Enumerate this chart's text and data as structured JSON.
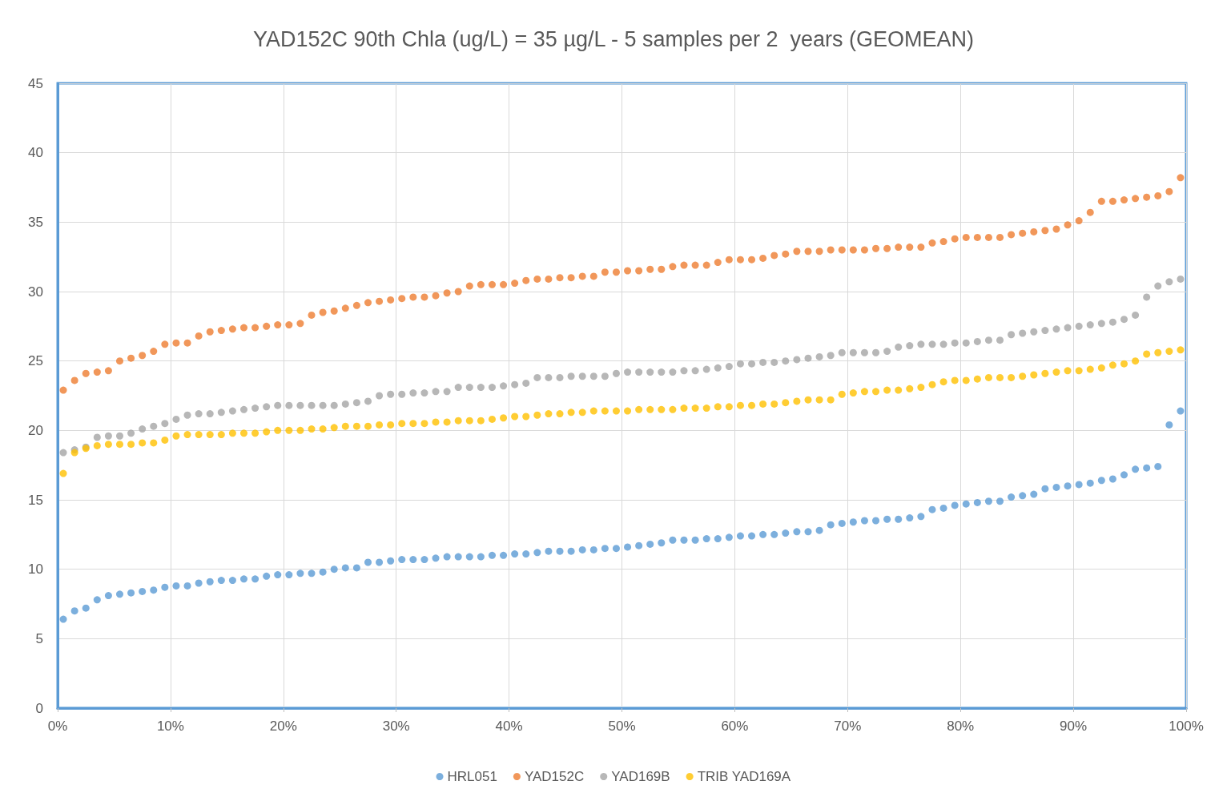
{
  "chart_data": {
    "type": "scatter",
    "title": "YAD152C 90th Chla (ug/L) = 35 µg/L - 5 samples per 2  years (GEOMEAN)",
    "x": [
      0.5,
      1.5,
      2.5,
      3.5,
      4.5,
      5.5,
      6.5,
      7.5,
      8.5,
      9.5,
      10.5,
      11.5,
      12.5,
      13.5,
      14.5,
      15.5,
      16.5,
      17.5,
      18.5,
      19.5,
      20.5,
      21.5,
      22.5,
      23.5,
      24.5,
      25.5,
      26.5,
      27.5,
      28.5,
      29.5,
      30.5,
      31.5,
      32.5,
      33.5,
      34.5,
      35.5,
      36.5,
      37.5,
      38.5,
      39.5,
      40.5,
      41.5,
      42.5,
      43.5,
      44.5,
      45.5,
      46.5,
      47.5,
      48.5,
      49.5,
      50.5,
      51.5,
      52.5,
      53.5,
      54.5,
      55.5,
      56.5,
      57.5,
      58.5,
      59.5,
      60.5,
      61.5,
      62.5,
      63.5,
      64.5,
      65.5,
      66.5,
      67.5,
      68.5,
      69.5,
      70.5,
      71.5,
      72.5,
      73.5,
      74.5,
      75.5,
      76.5,
      77.5,
      78.5,
      79.5,
      80.5,
      81.5,
      82.5,
      83.5,
      84.5,
      85.5,
      86.5,
      87.5,
      88.5,
      89.5,
      90.5,
      91.5,
      92.5,
      93.5,
      94.5,
      95.5,
      96.5,
      97.5,
      98.5,
      99.5
    ],
    "series": [
      {
        "name": "HRL051",
        "color": "#5b9bd5",
        "values": [
          6.4,
          7.0,
          7.2,
          7.8,
          8.1,
          8.2,
          8.3,
          8.4,
          8.5,
          8.7,
          8.8,
          8.8,
          9.0,
          9.1,
          9.2,
          9.2,
          9.3,
          9.3,
          9.5,
          9.6,
          9.6,
          9.7,
          9.7,
          9.8,
          10.0,
          10.1,
          10.1,
          10.5,
          10.5,
          10.6,
          10.7,
          10.7,
          10.7,
          10.8,
          10.9,
          10.9,
          10.9,
          10.9,
          11.0,
          11.0,
          11.1,
          11.1,
          11.2,
          11.3,
          11.3,
          11.3,
          11.4,
          11.4,
          11.5,
          11.5,
          11.6,
          11.7,
          11.8,
          11.9,
          12.1,
          12.1,
          12.1,
          12.2,
          12.2,
          12.3,
          12.4,
          12.4,
          12.5,
          12.5,
          12.6,
          12.7,
          12.7,
          12.8,
          13.2,
          13.3,
          13.4,
          13.5,
          13.5,
          13.6,
          13.6,
          13.7,
          13.8,
          14.3,
          14.4,
          14.6,
          14.7,
          14.8,
          14.9,
          14.9,
          15.2,
          15.3,
          15.4,
          15.8,
          15.9,
          16.0,
          16.1,
          16.2,
          16.4,
          16.5,
          16.8,
          17.2,
          17.3,
          17.4,
          20.4,
          21.4
        ]
      },
      {
        "name": "YAD152C",
        "color": "#ed7d31",
        "values": [
          22.9,
          23.6,
          24.1,
          24.2,
          24.3,
          25.0,
          25.2,
          25.4,
          25.7,
          26.2,
          26.3,
          26.3,
          26.8,
          27.1,
          27.2,
          27.3,
          27.4,
          27.4,
          27.5,
          27.6,
          27.6,
          27.7,
          28.3,
          28.5,
          28.6,
          28.8,
          29.0,
          29.2,
          29.3,
          29.4,
          29.5,
          29.6,
          29.6,
          29.7,
          29.9,
          30.0,
          30.4,
          30.5,
          30.5,
          30.5,
          30.6,
          30.8,
          30.9,
          30.9,
          31.0,
          31.0,
          31.1,
          31.1,
          31.4,
          31.4,
          31.5,
          31.5,
          31.6,
          31.6,
          31.8,
          31.9,
          31.9,
          31.9,
          32.1,
          32.3,
          32.3,
          32.3,
          32.4,
          32.6,
          32.7,
          32.9,
          32.9,
          32.9,
          33.0,
          33.0,
          33.0,
          33.0,
          33.1,
          33.1,
          33.2,
          33.2,
          33.2,
          33.5,
          33.6,
          33.8,
          33.9,
          33.9,
          33.9,
          33.9,
          34.1,
          34.2,
          34.3,
          34.4,
          34.5,
          34.8,
          35.1,
          35.7,
          36.5,
          36.5,
          36.6,
          36.7,
          36.8,
          36.9,
          37.2,
          38.2
        ]
      },
      {
        "name": "YAD169B",
        "color": "#a5a5a5",
        "values": [
          18.4,
          18.6,
          18.8,
          19.5,
          19.6,
          19.6,
          19.8,
          20.1,
          20.3,
          20.5,
          20.8,
          21.1,
          21.2,
          21.2,
          21.3,
          21.4,
          21.5,
          21.6,
          21.7,
          21.8,
          21.8,
          21.8,
          21.8,
          21.8,
          21.8,
          21.9,
          22.0,
          22.1,
          22.5,
          22.6,
          22.6,
          22.7,
          22.7,
          22.8,
          22.8,
          23.1,
          23.1,
          23.1,
          23.1,
          23.2,
          23.3,
          23.4,
          23.8,
          23.8,
          23.8,
          23.9,
          23.9,
          23.9,
          23.9,
          24.1,
          24.2,
          24.2,
          24.2,
          24.2,
          24.2,
          24.3,
          24.3,
          24.4,
          24.5,
          24.6,
          24.8,
          24.8,
          24.9,
          24.9,
          25.0,
          25.1,
          25.2,
          25.3,
          25.4,
          25.6,
          25.6,
          25.6,
          25.6,
          25.7,
          26.0,
          26.1,
          26.2,
          26.2,
          26.2,
          26.3,
          26.3,
          26.4,
          26.5,
          26.5,
          26.9,
          27.0,
          27.1,
          27.2,
          27.3,
          27.4,
          27.5,
          27.6,
          27.7,
          27.8,
          28.0,
          28.3,
          29.6,
          30.4,
          30.7,
          30.9
        ]
      },
      {
        "name": "TRIB YAD169A",
        "color": "#ffc000",
        "values": [
          16.9,
          18.4,
          18.7,
          18.9,
          19.0,
          19.0,
          19.0,
          19.1,
          19.1,
          19.3,
          19.6,
          19.7,
          19.7,
          19.7,
          19.7,
          19.8,
          19.8,
          19.8,
          19.9,
          20.0,
          20.0,
          20.0,
          20.1,
          20.1,
          20.2,
          20.3,
          20.3,
          20.3,
          20.4,
          20.4,
          20.5,
          20.5,
          20.5,
          20.6,
          20.6,
          20.7,
          20.7,
          20.7,
          20.8,
          20.9,
          21.0,
          21.0,
          21.1,
          21.2,
          21.2,
          21.3,
          21.3,
          21.4,
          21.4,
          21.4,
          21.4,
          21.5,
          21.5,
          21.5,
          21.5,
          21.6,
          21.6,
          21.6,
          21.7,
          21.7,
          21.8,
          21.8,
          21.9,
          21.9,
          22.0,
          22.1,
          22.2,
          22.2,
          22.2,
          22.6,
          22.7,
          22.8,
          22.8,
          22.9,
          22.9,
          23.0,
          23.1,
          23.3,
          23.5,
          23.6,
          23.6,
          23.7,
          23.8,
          23.8,
          23.8,
          23.9,
          24.0,
          24.1,
          24.2,
          24.3,
          24.3,
          24.4,
          24.5,
          24.7,
          24.8,
          25.0,
          25.5,
          25.6,
          25.7,
          25.8
        ]
      }
    ],
    "xlim": [
      0,
      100
    ],
    "xticks": [
      {
        "value": 0,
        "label": "0%"
      },
      {
        "value": 10,
        "label": "10%"
      },
      {
        "value": 20,
        "label": "20%"
      },
      {
        "value": 30,
        "label": "30%"
      },
      {
        "value": 40,
        "label": "40%"
      },
      {
        "value": 50,
        "label": "50%"
      },
      {
        "value": 60,
        "label": "60%"
      },
      {
        "value": 70,
        "label": "70%"
      },
      {
        "value": 80,
        "label": "80%"
      },
      {
        "value": 90,
        "label": "90%"
      },
      {
        "value": 100,
        "label": "100%"
      }
    ],
    "ylim": [
      0,
      45
    ],
    "yticks": [
      0,
      5,
      10,
      15,
      20,
      25,
      30,
      35,
      40,
      45
    ],
    "grid": true,
    "legend": "bottom",
    "marker": "circle"
  }
}
